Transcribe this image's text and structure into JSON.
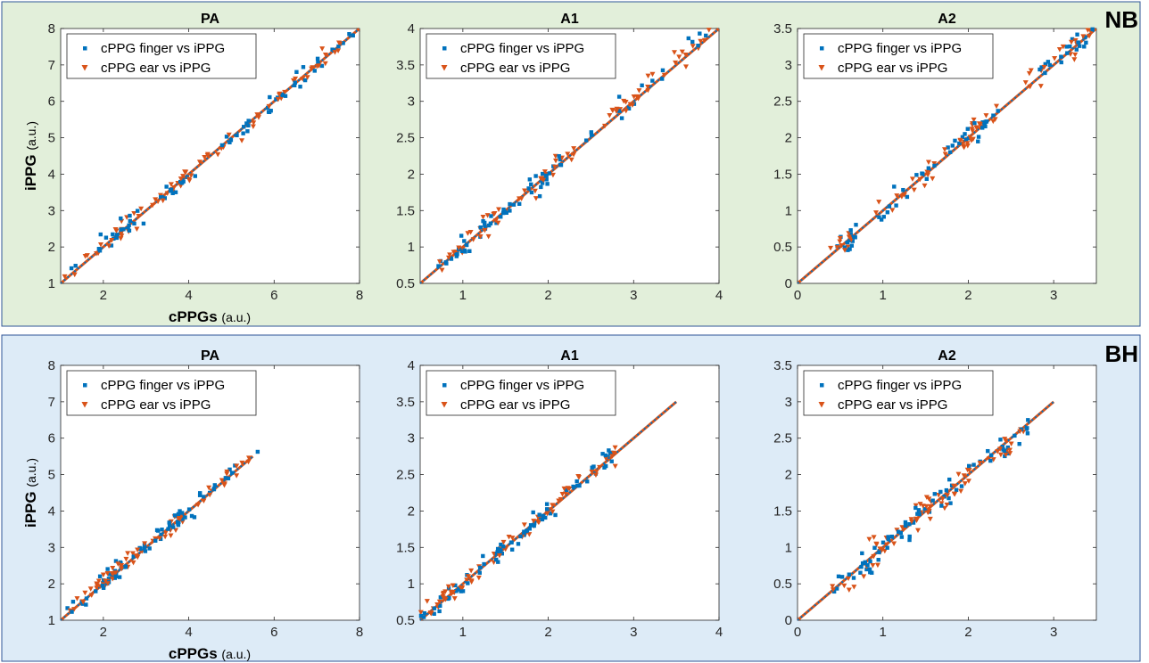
{
  "figure": {
    "y_label_main": "iPPG",
    "y_label_unit": "(a.u.)",
    "x_label_main": "cPPGs",
    "x_label_unit": "(a.u.)",
    "legend_finger": "cPPG finger vs iPPG",
    "legend_ear": "cPPG ear vs iPPG"
  },
  "colors": {
    "finger": "#0072BD",
    "ear": "#D95319",
    "panel_nb": "#E2EFDA",
    "panel_bh": "#DDEBF7",
    "panel_border": "#2F5597"
  },
  "rows": [
    {
      "condition": "NB"
    },
    {
      "condition": "BH"
    }
  ],
  "chart_data": [
    {
      "type": "scatter",
      "row": "NB",
      "title": "PA",
      "xlim": [
        1,
        8
      ],
      "ylim": [
        1,
        8
      ],
      "xticks": [
        2,
        4,
        6,
        8
      ],
      "yticks": [
        1,
        2,
        3,
        4,
        5,
        6,
        7,
        8
      ],
      "fit_line": [
        [
          1,
          1
        ],
        [
          8,
          8
        ]
      ],
      "clusters": [
        [
          1.3,
          1.4,
          0.25
        ],
        [
          2.2,
          2.3,
          0.35
        ],
        [
          2.6,
          2.6,
          0.3
        ],
        [
          3.3,
          3.3,
          0.35
        ],
        [
          3.8,
          3.8,
          0.25
        ],
        [
          4.6,
          4.6,
          0.4
        ],
        [
          5.4,
          5.4,
          0.35
        ],
        [
          6.3,
          6.3,
          0.4
        ],
        [
          7.3,
          7.3,
          0.3
        ]
      ],
      "n": 150,
      "noise": 0.13,
      "seed": 11,
      "series": [
        {
          "name": "cPPG finger vs iPPG",
          "marker": "square"
        },
        {
          "name": "cPPG ear vs iPPG",
          "marker": "triangle-down"
        }
      ]
    },
    {
      "type": "scatter",
      "row": "NB",
      "title": "A1",
      "xlim": [
        0.5,
        4
      ],
      "ylim": [
        0.5,
        4
      ],
      "xticks": [
        1,
        2,
        3,
        4
      ],
      "yticks": [
        0.5,
        1,
        1.5,
        2,
        2.5,
        3,
        3.5,
        4
      ],
      "fit_line": [
        [
          0.5,
          0.5
        ],
        [
          4,
          4
        ]
      ],
      "clusters": [
        [
          0.9,
          0.9,
          0.15
        ],
        [
          1.2,
          1.2,
          0.12
        ],
        [
          1.5,
          1.5,
          0.15
        ],
        [
          1.85,
          1.85,
          0.15
        ],
        [
          2.1,
          2.1,
          0.12
        ],
        [
          2.8,
          2.85,
          0.2
        ],
        [
          3.3,
          3.35,
          0.2
        ],
        [
          3.7,
          3.75,
          0.15
        ]
      ],
      "n": 150,
      "noise": 0.07,
      "seed": 23,
      "series": [
        {
          "name": "cPPG finger vs iPPG",
          "marker": "square"
        },
        {
          "name": "cPPG ear vs iPPG",
          "marker": "triangle-down"
        }
      ]
    },
    {
      "type": "scatter",
      "row": "NB",
      "title": "A2",
      "xlim": [
        0,
        3.5
      ],
      "ylim": [
        0,
        3.5
      ],
      "xticks": [
        0,
        1,
        2,
        3
      ],
      "yticks": [
        0,
        0.5,
        1,
        1.5,
        2,
        2.5,
        3,
        3.5
      ],
      "fit_line": [
        [
          0,
          0
        ],
        [
          3.5,
          3.5
        ]
      ],
      "clusters": [
        [
          0.55,
          0.55,
          0.08
        ],
        [
          1.05,
          1.05,
          0.15
        ],
        [
          1.45,
          1.45,
          0.15
        ],
        [
          1.85,
          1.9,
          0.15
        ],
        [
          2.1,
          2.1,
          0.12
        ],
        [
          3.0,
          3.05,
          0.2
        ],
        [
          3.3,
          3.3,
          0.15
        ]
      ],
      "n": 150,
      "noise": 0.08,
      "seed": 37,
      "series": [
        {
          "name": "cPPG finger vs iPPG",
          "marker": "square"
        },
        {
          "name": "cPPG ear vs iPPG",
          "marker": "triangle-down"
        }
      ]
    },
    {
      "type": "scatter",
      "row": "BH",
      "title": "PA",
      "xlim": [
        1,
        8
      ],
      "ylim": [
        1,
        8
      ],
      "xticks": [
        2,
        4,
        6,
        8
      ],
      "yticks": [
        1,
        2,
        3,
        4,
        5,
        6,
        7,
        8
      ],
      "fit_line": [
        [
          1,
          1
        ],
        [
          5.5,
          5.5
        ]
      ],
      "clusters": [
        [
          1.3,
          1.35,
          0.25
        ],
        [
          1.9,
          1.95,
          0.3
        ],
        [
          2.4,
          2.45,
          0.35
        ],
        [
          3.0,
          3.05,
          0.4
        ],
        [
          3.6,
          3.6,
          0.3
        ],
        [
          4.3,
          4.3,
          0.3
        ],
        [
          5.0,
          5.0,
          0.3
        ]
      ],
      "n": 150,
      "noise": 0.13,
      "seed": 53,
      "series": [
        {
          "name": "cPPG finger vs iPPG",
          "marker": "square"
        },
        {
          "name": "cPPG ear vs iPPG",
          "marker": "triangle-down"
        }
      ]
    },
    {
      "type": "scatter",
      "row": "BH",
      "title": "A1",
      "xlim": [
        0.5,
        4
      ],
      "ylim": [
        0.5,
        4
      ],
      "xticks": [
        1,
        2,
        3,
        4
      ],
      "yticks": [
        0.5,
        1,
        1.5,
        2,
        2.5,
        3,
        3.5,
        4
      ],
      "fit_line": [
        [
          0.5,
          0.5
        ],
        [
          3.5,
          3.5
        ]
      ],
      "clusters": [
        [
          0.7,
          0.75,
          0.15
        ],
        [
          0.95,
          0.95,
          0.15
        ],
        [
          1.3,
          1.3,
          0.15
        ],
        [
          1.55,
          1.55,
          0.15
        ],
        [
          1.85,
          1.85,
          0.15
        ],
        [
          2.25,
          2.3,
          0.15
        ],
        [
          2.7,
          2.7,
          0.12
        ]
      ],
      "n": 150,
      "noise": 0.07,
      "seed": 71,
      "series": [
        {
          "name": "cPPG finger vs iPPG",
          "marker": "square"
        },
        {
          "name": "cPPG ear vs iPPG",
          "marker": "triangle-down"
        }
      ]
    },
    {
      "type": "scatter",
      "row": "BH",
      "title": "A2",
      "xlim": [
        0,
        3.5
      ],
      "ylim": [
        0,
        3.5
      ],
      "xticks": [
        0,
        1,
        2,
        3
      ],
      "yticks": [
        0,
        0.5,
        1,
        1.5,
        2,
        2.5,
        3,
        3.5
      ],
      "fit_line": [
        [
          0,
          0
        ],
        [
          3,
          3
        ]
      ],
      "clusters": [
        [
          0.6,
          0.6,
          0.15
        ],
        [
          0.95,
          0.95,
          0.12
        ],
        [
          1.2,
          1.2,
          0.15
        ],
        [
          1.5,
          1.5,
          0.15
        ],
        [
          1.85,
          1.85,
          0.15
        ],
        [
          2.3,
          2.3,
          0.2
        ],
        [
          2.6,
          2.5,
          0.2
        ]
      ],
      "n": 150,
      "noise": 0.09,
      "seed": 89,
      "series": [
        {
          "name": "cPPG finger vs iPPG",
          "marker": "square"
        },
        {
          "name": "cPPG ear vs iPPG",
          "marker": "triangle-down"
        }
      ]
    }
  ]
}
